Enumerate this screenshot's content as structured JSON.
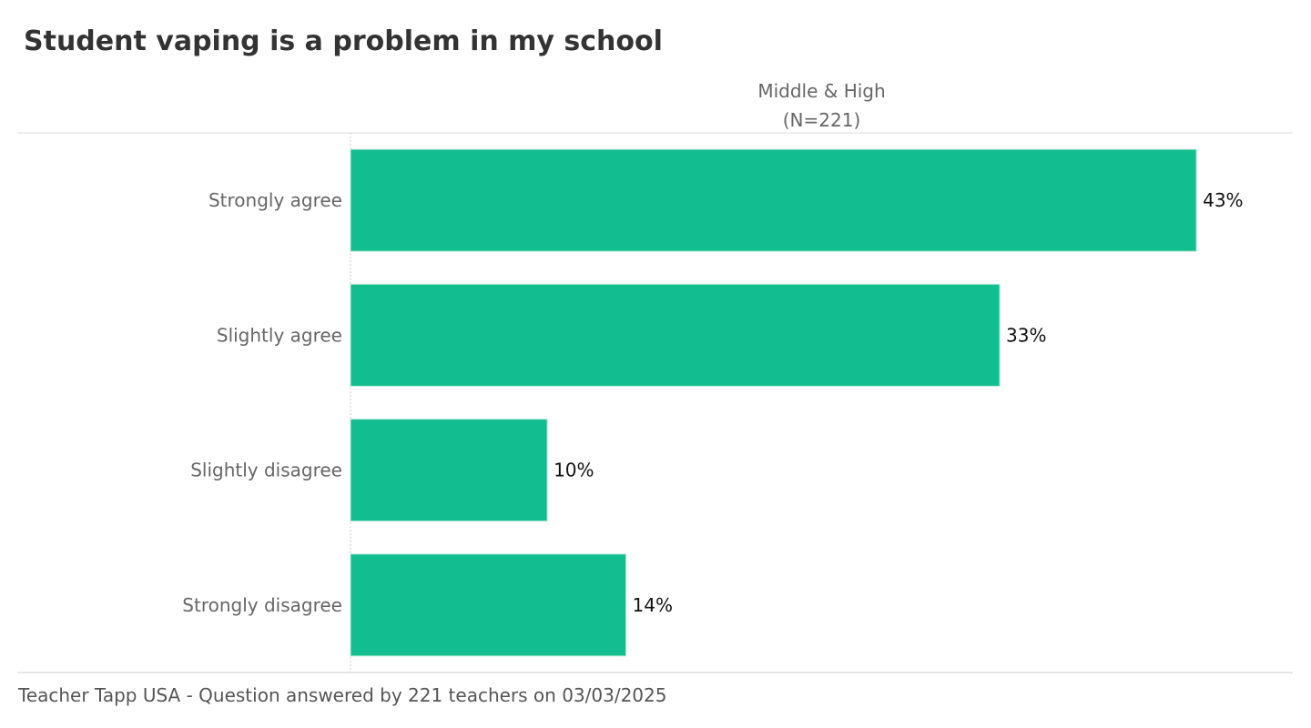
{
  "title": "Student vaping is a problem in my school",
  "column_header": {
    "line1": "Middle & High",
    "line2": "(N=221)"
  },
  "footer": "Teacher Tapp USA - Question answered by 221 teachers on 03/03/2025",
  "colors": {
    "bar": "#12BE8F",
    "bar_border": "#B5E8D8",
    "grid": "#CCCCCC",
    "axis_line": "#DDDDDD"
  },
  "chart_data": {
    "type": "bar",
    "orientation": "horizontal",
    "title": "Student vaping is a problem in my school",
    "subtitle": "Middle & High (N=221)",
    "categories": [
      "Strongly agree",
      "Slightly agree",
      "Slightly disagree",
      "Strongly disagree"
    ],
    "values": [
      43,
      33,
      10,
      14
    ],
    "value_labels": [
      "43%",
      "33%",
      "10%",
      "14%"
    ],
    "xlabel": "",
    "ylabel": "",
    "xlim": [
      0,
      47.9
    ],
    "grid": false,
    "legend": "none"
  }
}
